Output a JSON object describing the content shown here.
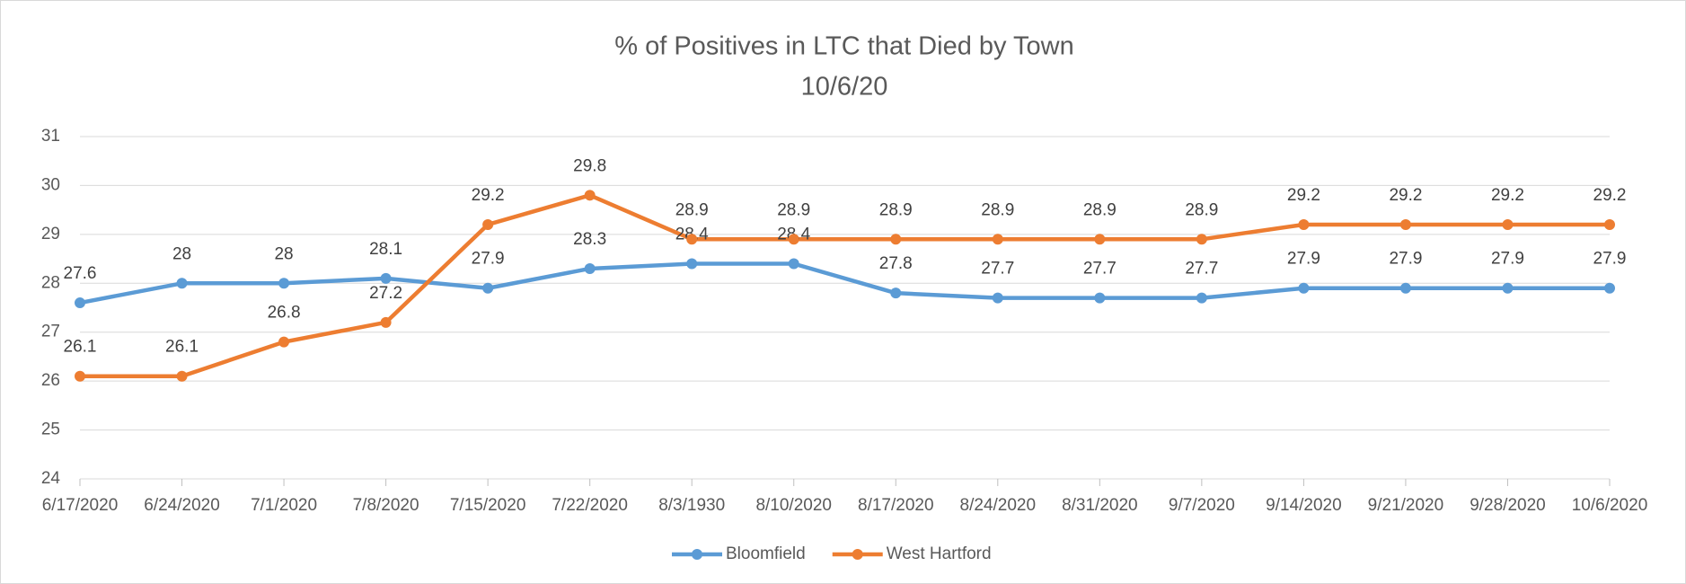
{
  "chart_data": {
    "type": "line",
    "title": "% of Positives in LTC that Died by Town",
    "subtitle": "10/6/20",
    "categories": [
      "6/17/2020",
      "6/24/2020",
      "7/1/2020",
      "7/8/2020",
      "7/15/2020",
      "7/22/2020",
      "8/3/1930",
      "8/10/2020",
      "8/17/2020",
      "8/24/2020",
      "8/31/2020",
      "9/7/2020",
      "9/14/2020",
      "9/21/2020",
      "9/28/2020",
      "10/6/2020"
    ],
    "series": [
      {
        "name": "Bloomfield",
        "color": "#5b9bd5",
        "values": [
          27.6,
          28,
          28,
          28.1,
          27.9,
          28.3,
          28.4,
          28.4,
          27.8,
          27.7,
          27.7,
          27.7,
          27.9,
          27.9,
          27.9,
          27.9
        ]
      },
      {
        "name": "West Hartford",
        "color": "#ed7d31",
        "values": [
          26.1,
          26.1,
          26.8,
          27.2,
          29.2,
          29.8,
          28.9,
          28.9,
          28.9,
          28.9,
          28.9,
          28.9,
          29.2,
          29.2,
          29.2,
          29.2
        ]
      }
    ],
    "ylim": [
      24,
      31
    ],
    "yticks": [
      24,
      25,
      26,
      27,
      28,
      29,
      30,
      31
    ],
    "grid": true,
    "legend": "bottom"
  }
}
